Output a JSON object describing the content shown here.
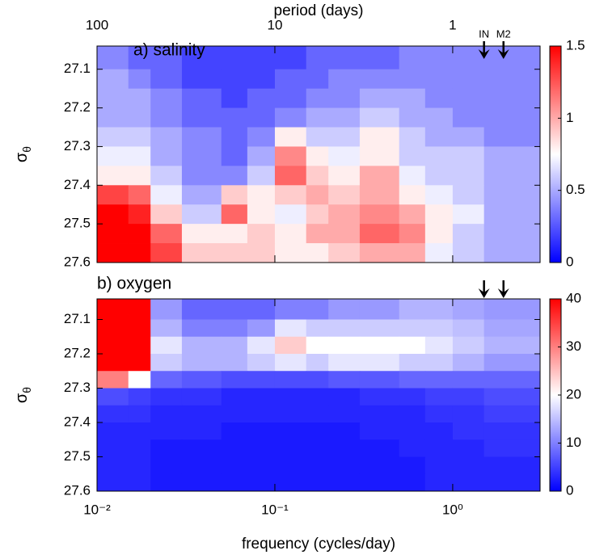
{
  "chart_data": [
    {
      "type": "heatmap",
      "title": "a) salinity",
      "x2label": "period (days)",
      "xlog": true,
      "xlim": [
        0.01,
        3.1
      ],
      "x2ticks": [
        {
          "value": 0.01,
          "label": "100"
        },
        {
          "value": 0.1,
          "label": "10"
        },
        {
          "value": 1,
          "label": "1"
        }
      ],
      "ylabel": "σ",
      "ylabel_sub": "θ",
      "y_reversed": true,
      "ylim": [
        27.04,
        27.6
      ],
      "yticks": [
        27.1,
        27.2,
        27.3,
        27.4,
        27.5,
        27.6
      ],
      "x_edges": [
        0.01,
        0.015,
        0.02,
        0.03,
        0.05,
        0.07,
        0.1,
        0.15,
        0.2,
        0.3,
        0.5,
        0.7,
        1,
        1.5,
        3.1
      ],
      "y_edges": [
        27.04,
        27.1,
        27.15,
        27.2,
        27.25,
        27.3,
        27.35,
        27.4,
        27.45,
        27.5,
        27.55,
        27.6
      ],
      "z": [
        [
          0.4,
          0.3,
          0.3,
          0.2,
          0.2,
          0.2,
          0.2,
          0.3,
          0.3,
          0.3,
          0.4,
          0.4,
          0.4,
          0.4
        ],
        [
          0.5,
          0.4,
          0.3,
          0.2,
          0.2,
          0.2,
          0.3,
          0.3,
          0.4,
          0.4,
          0.4,
          0.4,
          0.4,
          0.4
        ],
        [
          0.5,
          0.5,
          0.4,
          0.3,
          0.2,
          0.3,
          0.3,
          0.4,
          0.4,
          0.5,
          0.5,
          0.4,
          0.4,
          0.4
        ],
        [
          0.5,
          0.5,
          0.4,
          0.3,
          0.3,
          0.3,
          0.4,
          0.5,
          0.5,
          0.6,
          0.5,
          0.5,
          0.4,
          0.4
        ],
        [
          0.6,
          0.6,
          0.5,
          0.4,
          0.3,
          0.4,
          0.8,
          0.6,
          0.6,
          0.8,
          0.6,
          0.5,
          0.5,
          0.4
        ],
        [
          0.7,
          0.7,
          0.5,
          0.4,
          0.3,
          0.5,
          1.1,
          0.8,
          0.7,
          0.8,
          0.6,
          0.6,
          0.6,
          0.5
        ],
        [
          0.8,
          0.8,
          0.6,
          0.4,
          0.4,
          0.6,
          1.2,
          0.9,
          0.8,
          1.0,
          0.7,
          0.6,
          0.6,
          0.5
        ],
        [
          1.3,
          1.2,
          0.7,
          0.5,
          0.9,
          0.8,
          0.9,
          1.0,
          0.9,
          1.0,
          0.8,
          0.7,
          0.6,
          0.5
        ],
        [
          1.5,
          1.4,
          0.9,
          0.6,
          1.2,
          0.8,
          0.7,
          0.9,
          1.0,
          1.1,
          1.0,
          0.8,
          0.7,
          0.5
        ],
        [
          1.5,
          1.5,
          1.2,
          0.8,
          0.8,
          0.9,
          0.8,
          1.0,
          1.0,
          1.2,
          1.1,
          0.8,
          0.6,
          0.5
        ],
        [
          1.5,
          1.5,
          1.3,
          0.9,
          0.9,
          0.9,
          0.8,
          0.8,
          0.9,
          1.0,
          1.0,
          0.7,
          0.6,
          0.5
        ]
      ],
      "colormap": [
        "#0000ff",
        "#ffffff",
        "#ff0000"
      ],
      "zlim": [
        0,
        1.5
      ],
      "zticks": [
        0,
        0.5,
        1,
        1.5
      ],
      "arrows": [
        1.5,
        1.93
      ],
      "arrow_labels": [
        "IN",
        "M2"
      ]
    },
    {
      "type": "heatmap",
      "title": "b) oxygen",
      "xlabel": "frequency (cycles/day)",
      "xlog": true,
      "xlim": [
        0.01,
        3.1
      ],
      "xticks": [
        {
          "value": 0.01,
          "label": "10⁻²"
        },
        {
          "value": 0.1,
          "label": "10⁻¹"
        },
        {
          "value": 1,
          "label": "10⁰"
        }
      ],
      "ylabel": "σ",
      "ylabel_sub": "θ",
      "y_reversed": true,
      "ylim": [
        27.04,
        27.6
      ],
      "yticks": [
        27.1,
        27.2,
        27.3,
        27.4,
        27.5,
        27.6
      ],
      "x_edges": [
        0.01,
        0.015,
        0.02,
        0.03,
        0.05,
        0.07,
        0.1,
        0.15,
        0.2,
        0.3,
        0.5,
        0.7,
        1,
        1.5,
        3.1
      ],
      "y_edges": [
        27.04,
        27.1,
        27.15,
        27.2,
        27.25,
        27.3,
        27.35,
        27.4,
        27.45,
        27.5,
        27.55,
        27.6
      ],
      "z": [
        [
          40,
          40,
          12,
          8,
          8,
          8,
          10,
          10,
          12,
          12,
          14,
          14,
          13,
          12
        ],
        [
          40,
          40,
          14,
          10,
          10,
          12,
          18,
          16,
          16,
          16,
          16,
          16,
          15,
          13
        ],
        [
          40,
          40,
          18,
          14,
          14,
          18,
          24,
          20,
          20,
          20,
          20,
          18,
          16,
          14
        ],
        [
          40,
          40,
          16,
          14,
          14,
          16,
          18,
          16,
          18,
          18,
          16,
          16,
          14,
          12
        ],
        [
          30,
          20,
          8,
          7,
          6,
          6,
          6,
          6,
          7,
          7,
          8,
          8,
          8,
          8
        ],
        [
          6,
          5,
          4,
          4,
          3,
          3,
          3,
          3,
          3,
          4,
          4,
          5,
          5,
          6
        ],
        [
          4,
          4,
          3,
          3,
          3,
          3,
          3,
          3,
          3,
          3,
          3,
          4,
          4,
          5
        ],
        [
          3,
          3,
          3,
          3,
          2,
          2,
          2,
          2,
          2,
          3,
          3,
          3,
          4,
          4
        ],
        [
          3,
          3,
          2,
          2,
          2,
          2,
          2,
          2,
          2,
          2,
          3,
          3,
          3,
          4
        ],
        [
          3,
          3,
          2,
          2,
          2,
          2,
          2,
          2,
          2,
          2,
          2,
          3,
          3,
          3
        ],
        [
          3,
          3,
          2,
          2,
          2,
          2,
          2,
          2,
          2,
          2,
          2,
          3,
          3,
          3
        ]
      ],
      "colormap": [
        "#0000ff",
        "#ffffff",
        "#ff0000"
      ],
      "zlim": [
        0,
        40
      ],
      "zticks": [
        0,
        10,
        20,
        30,
        40
      ],
      "arrows": [
        1.5,
        1.93
      ]
    }
  ]
}
